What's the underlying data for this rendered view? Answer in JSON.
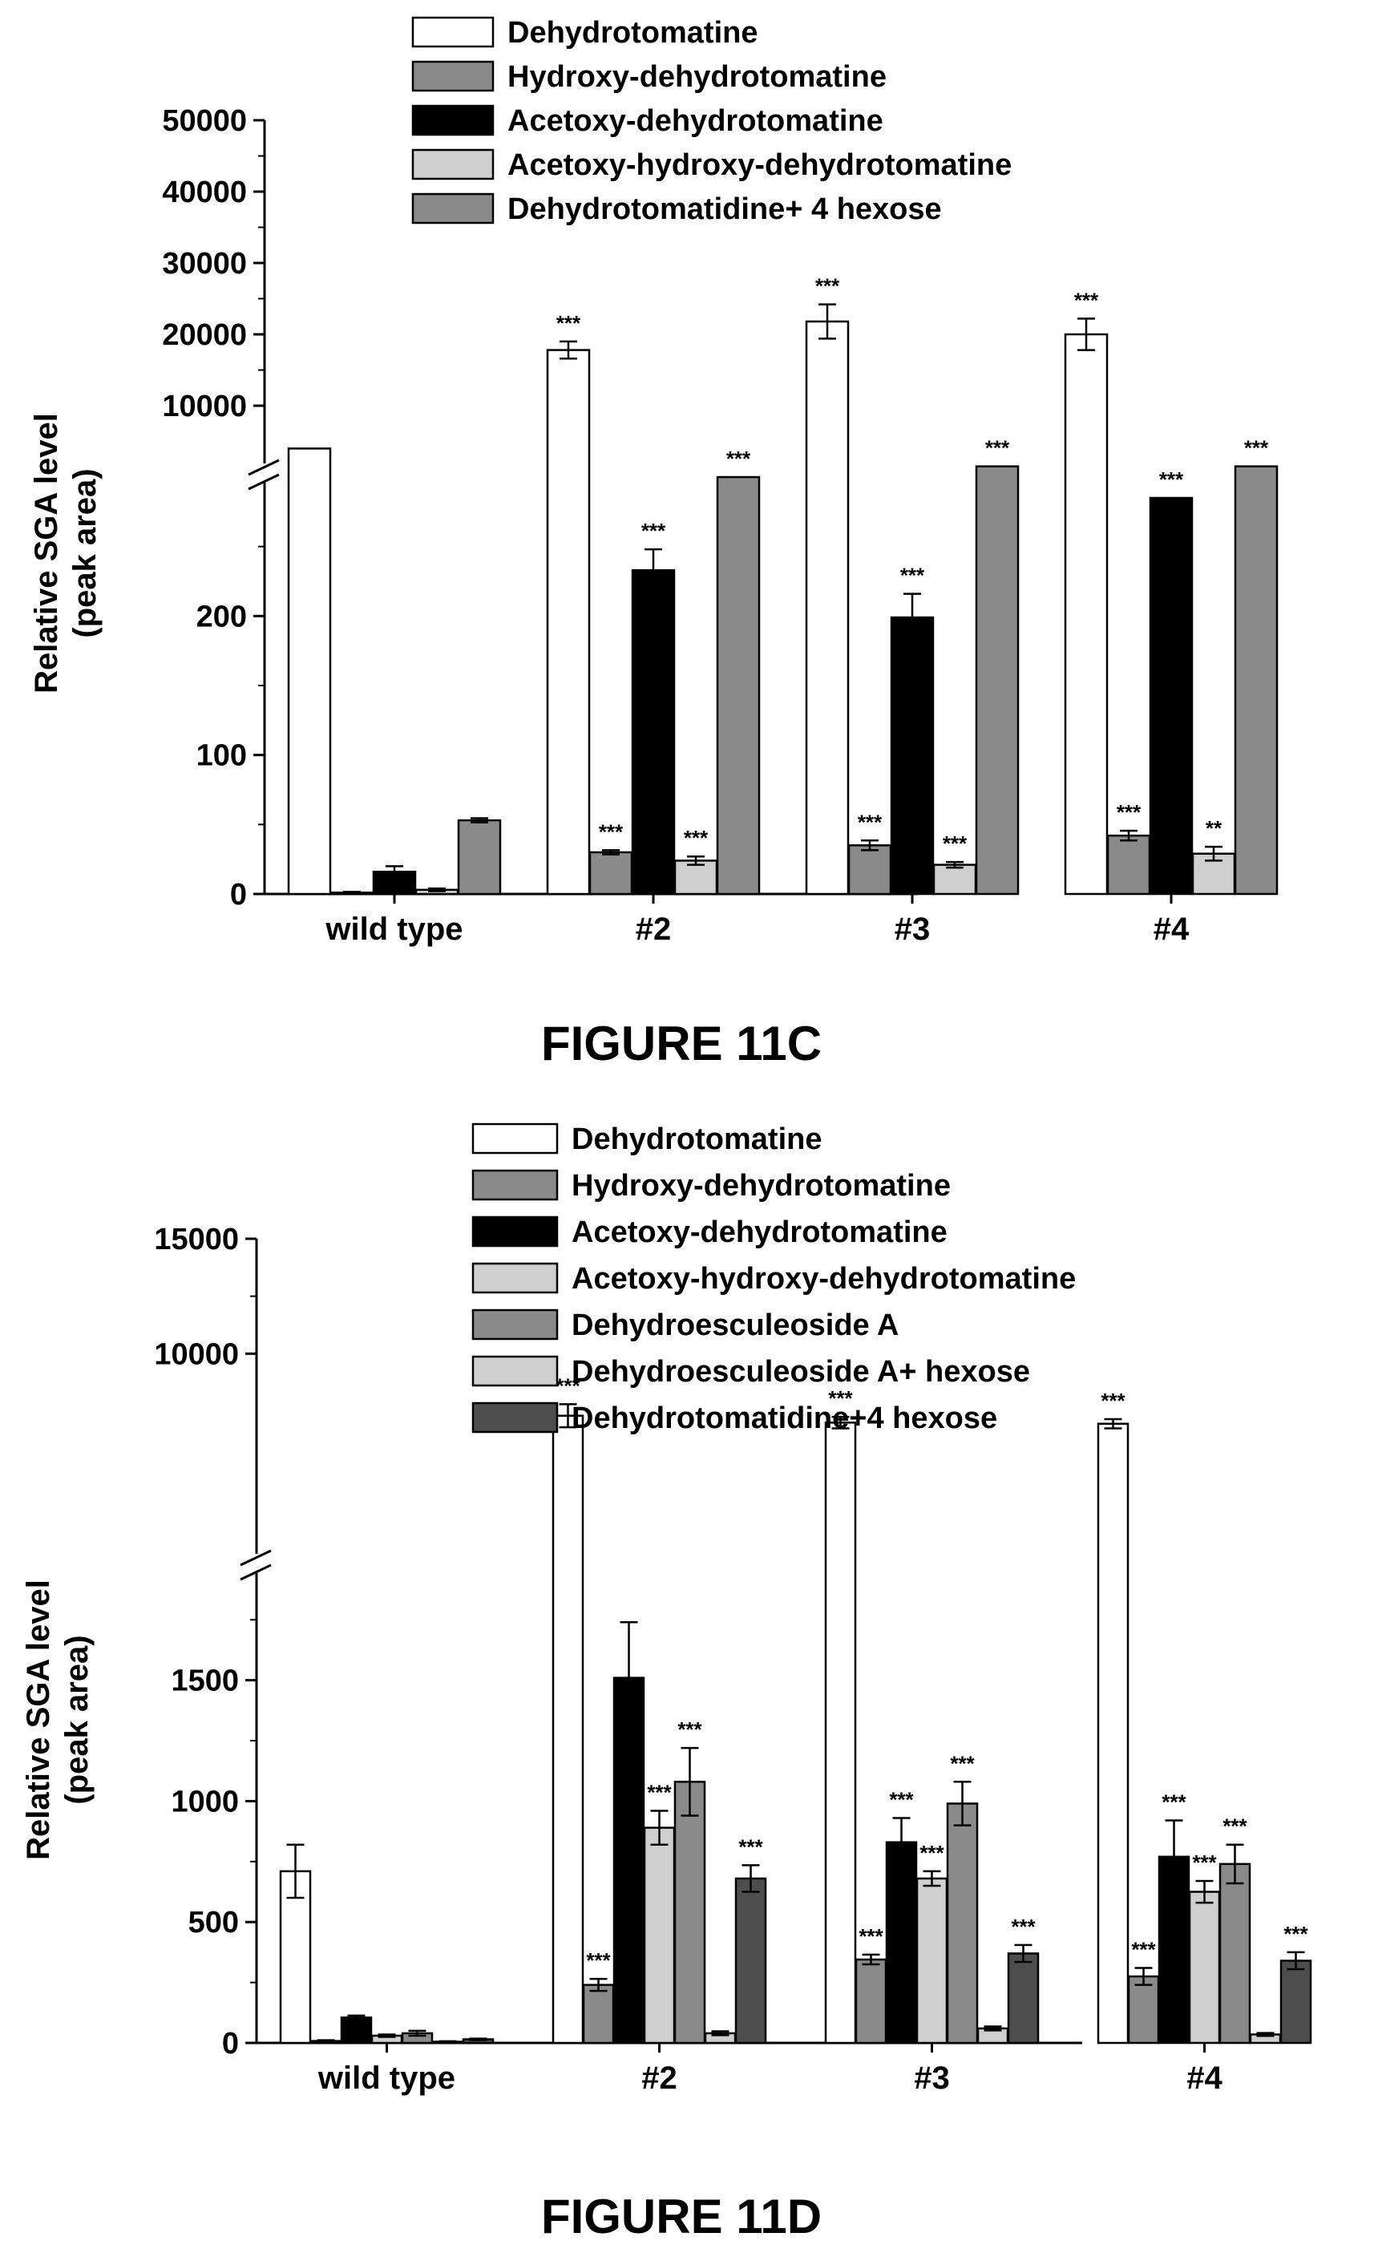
{
  "chart_data": [
    {
      "type": "bar",
      "figure_label": "FIGURE 11C",
      "ylabel": [
        "Relative SGA level",
        "(peak area)"
      ],
      "categories": [
        "wild type",
        "#2",
        "#3",
        "#4"
      ],
      "y_axis_broken": true,
      "y_lower_range": [
        0,
        300
      ],
      "y_lower_ticks": [
        "0",
        "100",
        "200"
      ],
      "y_upper_range": [
        0,
        50000
      ],
      "y_upper_ticks": [
        "10000",
        "20000",
        "30000",
        "40000",
        "50000"
      ],
      "legend_position": "top-right",
      "series": [
        {
          "name": "Dehydrotomatine",
          "color": "#ffffff",
          "values": [
            4000,
            17800,
            21800,
            20000
          ],
          "errors": [
            0,
            1200,
            2400,
            2200
          ],
          "sig": [
            "",
            "***",
            "***",
            "***"
          ]
        },
        {
          "name": "Hydroxy-dehydrotomatine",
          "color": "#8a8a8a",
          "values": [
            1,
            30,
            35,
            42
          ],
          "errors": [
            0.5,
            1.5,
            3.5,
            3.5
          ],
          "sig": [
            "",
            "***",
            "***",
            "***"
          ]
        },
        {
          "name": "Acetoxy-dehydrotomatine",
          "color": "#000000",
          "values": [
            16,
            233,
            199,
            285
          ],
          "errors": [
            4,
            15,
            17,
            0
          ],
          "sig": [
            "",
            "***",
            "***",
            "***"
          ]
        },
        {
          "name": "Acetoxy-hydroxy-dehydrotomatine",
          "color": "#cfcfcf",
          "values": [
            3,
            24,
            21,
            29
          ],
          "errors": [
            1,
            3,
            2,
            5
          ],
          "sig": [
            "",
            "***",
            "***",
            "**"
          ]
        },
        {
          "name": "Dehydrotomatidine+ 4 hexose",
          "color": "#8a8a8a",
          "values": [
            53,
            300,
            1500,
            1500
          ],
          "errors": [
            1.5,
            0,
            0,
            0
          ],
          "sig": [
            "",
            "***",
            "***",
            "***"
          ]
        }
      ]
    },
    {
      "type": "bar",
      "figure_label": "FIGURE 11D",
      "ylabel": [
        "Relative SGA level",
        "(peak area)"
      ],
      "categories": [
        "wild type",
        "#2",
        "#3",
        "#4"
      ],
      "y_axis_broken": true,
      "y_lower_range": [
        0,
        1900
      ],
      "y_lower_ticks": [
        "0",
        "500",
        "1000",
        "1500"
      ],
      "y_upper_range": [
        0,
        15000
      ],
      "y_upper_ticks": [
        "10000",
        "15000"
      ],
      "legend_position": "top-right",
      "series": [
        {
          "name": "Dehydrotomatine",
          "color": "#ffffff",
          "values": [
            710,
            7300,
            7000,
            6950
          ],
          "errors": [
            110,
            500,
            250,
            200
          ],
          "sig": [
            "",
            "***",
            "***",
            "***"
          ]
        },
        {
          "name": "Hydroxy-dehydrotomatine",
          "color": "#8a8a8a",
          "values": [
            8,
            240,
            345,
            275
          ],
          "errors": [
            3,
            25,
            20,
            35
          ],
          "sig": [
            "",
            "***",
            "***",
            "***"
          ]
        },
        {
          "name": "Acetoxy-dehydrotomatine",
          "color": "#000000",
          "values": [
            105,
            1510,
            830,
            770
          ],
          "errors": [
            8,
            230,
            100,
            150
          ],
          "sig": [
            "",
            "",
            "***",
            "***"
          ]
        },
        {
          "name": "Acetoxy-hydroxy-dehydrotomatine",
          "color": "#cfcfcf",
          "values": [
            30,
            890,
            680,
            625
          ],
          "errors": [
            5,
            70,
            30,
            45
          ],
          "sig": [
            "",
            "***",
            "***",
            "***"
          ]
        },
        {
          "name": "Dehydroesculeoside A",
          "color": "#8a8a8a",
          "values": [
            40,
            1080,
            990,
            740
          ],
          "errors": [
            10,
            140,
            90,
            80
          ],
          "sig": [
            "",
            "***",
            "***",
            "***"
          ]
        },
        {
          "name": "Dehydroesculeoside A+ hexose",
          "color": "#cfcfcf",
          "values": [
            5,
            40,
            60,
            35
          ],
          "errors": [
            2,
            8,
            8,
            6
          ],
          "sig": [
            "",
            "",
            "",
            ""
          ]
        },
        {
          "name": "Dehydrotomatidine+4 hexose",
          "color": "#4d4d4d",
          "values": [
            15,
            680,
            370,
            340
          ],
          "errors": [
            3,
            55,
            35,
            35
          ],
          "sig": [
            "",
            "***",
            "***",
            "***"
          ]
        }
      ]
    }
  ]
}
